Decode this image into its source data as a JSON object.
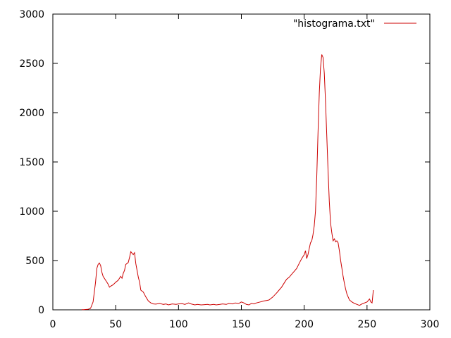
{
  "chart_data": {
    "type": "line",
    "title": "",
    "xlabel": "",
    "ylabel": "",
    "xlim": [
      0,
      300
    ],
    "ylim": [
      0,
      3000
    ],
    "x_ticks": [
      0,
      50,
      100,
      150,
      200,
      250,
      300
    ],
    "y_ticks": [
      0,
      500,
      1000,
      1500,
      2000,
      2500,
      3000
    ],
    "grid": false,
    "legend_position": "top-right",
    "series": [
      {
        "name": "\"histograma.txt\"",
        "color": "#cc0000",
        "points": [
          [
            23,
            2
          ],
          [
            25,
            3
          ],
          [
            28,
            5
          ],
          [
            30,
            15
          ],
          [
            32,
            80
          ],
          [
            34,
            280
          ],
          [
            35,
            420
          ],
          [
            36,
            460
          ],
          [
            37,
            475
          ],
          [
            38,
            450
          ],
          [
            39,
            380
          ],
          [
            40,
            340
          ],
          [
            42,
            300
          ],
          [
            44,
            260
          ],
          [
            45,
            230
          ],
          [
            46,
            240
          ],
          [
            48,
            255
          ],
          [
            50,
            280
          ],
          [
            52,
            300
          ],
          [
            54,
            340
          ],
          [
            55,
            320
          ],
          [
            56,
            370
          ],
          [
            57,
            400
          ],
          [
            58,
            460
          ],
          [
            60,
            480
          ],
          [
            61,
            530
          ],
          [
            62,
            590
          ],
          [
            63,
            575
          ],
          [
            64,
            560
          ],
          [
            65,
            580
          ],
          [
            66,
            470
          ],
          [
            67,
            400
          ],
          [
            68,
            330
          ],
          [
            69,
            280
          ],
          [
            70,
            200
          ],
          [
            72,
            180
          ],
          [
            74,
            130
          ],
          [
            76,
            90
          ],
          [
            78,
            70
          ],
          [
            80,
            60
          ],
          [
            82,
            58
          ],
          [
            85,
            65
          ],
          [
            88,
            55
          ],
          [
            90,
            60
          ],
          [
            92,
            50
          ],
          [
            95,
            60
          ],
          [
            98,
            55
          ],
          [
            100,
            60
          ],
          [
            103,
            62
          ],
          [
            105,
            55
          ],
          [
            108,
            70
          ],
          [
            110,
            60
          ],
          [
            113,
            50
          ],
          [
            115,
            55
          ],
          [
            118,
            50
          ],
          [
            120,
            52
          ],
          [
            123,
            55
          ],
          [
            125,
            50
          ],
          [
            128,
            55
          ],
          [
            130,
            50
          ],
          [
            133,
            55
          ],
          [
            135,
            60
          ],
          [
            138,
            55
          ],
          [
            140,
            65
          ],
          [
            143,
            60
          ],
          [
            145,
            70
          ],
          [
            148,
            65
          ],
          [
            150,
            80
          ],
          [
            152,
            70
          ],
          [
            154,
            55
          ],
          [
            156,
            50
          ],
          [
            158,
            65
          ],
          [
            160,
            60
          ],
          [
            162,
            70
          ],
          [
            165,
            80
          ],
          [
            168,
            90
          ],
          [
            170,
            95
          ],
          [
            172,
            100
          ],
          [
            175,
            130
          ],
          [
            178,
            170
          ],
          [
            180,
            200
          ],
          [
            182,
            230
          ],
          [
            184,
            270
          ],
          [
            186,
            310
          ],
          [
            188,
            330
          ],
          [
            190,
            360
          ],
          [
            192,
            390
          ],
          [
            194,
            420
          ],
          [
            196,
            470
          ],
          [
            198,
            520
          ],
          [
            200,
            560
          ],
          [
            201,
            600
          ],
          [
            202,
            520
          ],
          [
            203,
            560
          ],
          [
            204,
            620
          ],
          [
            205,
            680
          ],
          [
            206,
            700
          ],
          [
            207,
            760
          ],
          [
            208,
            850
          ],
          [
            209,
            1000
          ],
          [
            210,
            1350
          ],
          [
            211,
            1800
          ],
          [
            212,
            2200
          ],
          [
            213,
            2450
          ],
          [
            214,
            2590
          ],
          [
            215,
            2560
          ],
          [
            216,
            2400
          ],
          [
            217,
            2100
          ],
          [
            218,
            1750
          ],
          [
            219,
            1400
          ],
          [
            220,
            1100
          ],
          [
            221,
            880
          ],
          [
            222,
            780
          ],
          [
            223,
            700
          ],
          [
            224,
            720
          ],
          [
            225,
            690
          ],
          [
            226,
            700
          ],
          [
            227,
            680
          ],
          [
            228,
            600
          ],
          [
            229,
            500
          ],
          [
            230,
            420
          ],
          [
            231,
            340
          ],
          [
            232,
            270
          ],
          [
            233,
            210
          ],
          [
            234,
            160
          ],
          [
            235,
            130
          ],
          [
            236,
            100
          ],
          [
            238,
            80
          ],
          [
            240,
            65
          ],
          [
            242,
            55
          ],
          [
            244,
            45
          ],
          [
            246,
            60
          ],
          [
            248,
            70
          ],
          [
            250,
            80
          ],
          [
            252,
            110
          ],
          [
            253,
            80
          ],
          [
            254,
            70
          ],
          [
            255,
            200
          ]
        ]
      }
    ]
  }
}
